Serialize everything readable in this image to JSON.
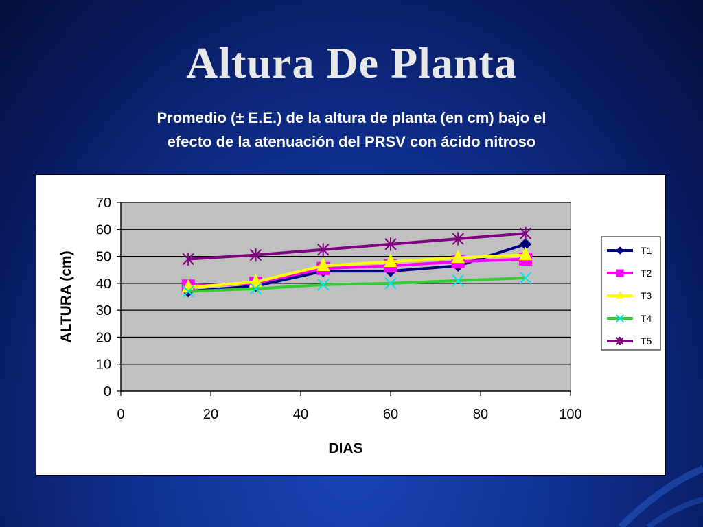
{
  "slide": {
    "title": "Altura De Planta",
    "subtitle_line1": "Promedio (± E.E.) de la altura de planta (en cm) bajo el",
    "subtitle_line2": "efecto de la atenuación del PRSV con ácido nitroso"
  },
  "colors": {
    "background": "#0f2f8f",
    "plot_area": "#c0c0c0"
  },
  "chart_data": {
    "type": "line",
    "xlabel": "DIAS",
    "ylabel": "ALTURA (cm)",
    "xlim": [
      0,
      100
    ],
    "ylim": [
      0,
      70
    ],
    "x_ticks": [
      0,
      20,
      40,
      60,
      80,
      100
    ],
    "y_ticks": [
      0,
      10,
      20,
      30,
      40,
      50,
      60,
      70
    ],
    "grid": "horizontal",
    "legend": "right",
    "x": [
      15,
      30,
      45,
      60,
      75,
      90
    ],
    "series": [
      {
        "name": "T1",
        "color": "#000080",
        "marker": "diamond",
        "values": [
          37,
          39,
          44.5,
          44.5,
          46.5,
          54.5
        ]
      },
      {
        "name": "T2",
        "color": "#ff00ff",
        "marker": "square",
        "values": [
          39,
          40,
          45.5,
          46.5,
          48,
          49
        ]
      },
      {
        "name": "T3",
        "color": "#ffff00",
        "marker": "triangle",
        "values": [
          38.5,
          40.5,
          46.5,
          48,
          49.5,
          50.5
        ]
      },
      {
        "name": "T4",
        "color": "#33cc33",
        "marker": "x",
        "values": [
          37,
          38,
          39.5,
          40,
          41,
          42
        ]
      },
      {
        "name": "T5",
        "color": "#800080",
        "marker": "star",
        "values": [
          49,
          50.5,
          52.5,
          54.5,
          56.5,
          58.5
        ]
      }
    ]
  }
}
